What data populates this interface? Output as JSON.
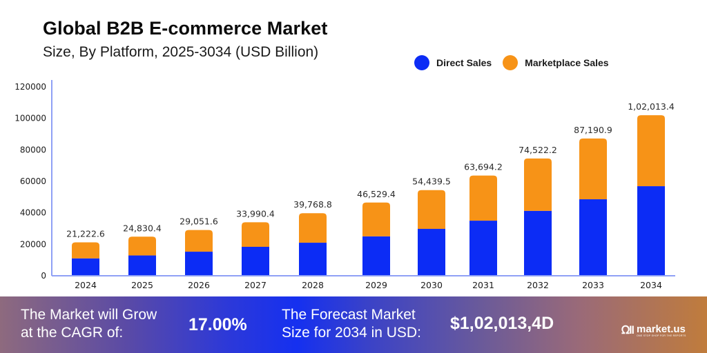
{
  "header": {
    "title": "Global B2B E-commerce Market",
    "subtitle": "Size, By Platform, 2025-3034 (USD Billion)"
  },
  "colors": {
    "direct_sales": "#0c2cf5",
    "marketplace_sales": "#f79317",
    "axis": "#8fa0f5"
  },
  "chart_data": {
    "type": "bar",
    "stacked": true,
    "title": "Global B2B E-commerce Market",
    "subtitle": "Size, By Platform, 2025-3034 (USD Billion)",
    "xlabel": "",
    "ylabel": "",
    "ylim": [
      0,
      120000
    ],
    "yticks": [
      0,
      20000,
      40000,
      60000,
      80000,
      100000,
      120000
    ],
    "ytick_labels": [
      "0",
      "20000",
      "40000",
      "60000",
      "80000",
      "100000",
      "120000"
    ],
    "grid": false,
    "legend_position": "top-right",
    "categories": [
      "2024",
      "2025",
      "2026",
      "2027",
      "2028",
      "2029",
      "2030",
      "2031",
      "2032",
      "2033",
      "2034"
    ],
    "series": [
      {
        "name": "Direct Sales",
        "color": "#0c2cf5",
        "values": [
          11000,
          12900,
          15300,
          18400,
          21000,
          25000,
          29800,
          35000,
          41200,
          48600,
          56900
        ]
      },
      {
        "name": "Marketplace Sales",
        "color": "#f79317",
        "values": [
          10222.6,
          11930.4,
          13751.6,
          15590.4,
          18768.8,
          21529.4,
          24639.5,
          28694.2,
          33322.2,
          38590.9,
          45113.4
        ]
      }
    ],
    "totals": [
      21222.6,
      24830.4,
      29051.6,
      33990.4,
      39768.8,
      46529.4,
      54439.5,
      63694.2,
      74522.2,
      87190.9,
      102013.4
    ],
    "total_labels": [
      "21,222.6",
      "24,830.4",
      "29,051.6",
      "33,990.4",
      "39,768.8",
      "46,529.4",
      "54,439.5",
      "63,694.2",
      "74,522.2",
      "87,190.9",
      "1,02,013.4"
    ]
  },
  "legend": [
    {
      "label": "Direct Sales",
      "color": "#0c2cf5"
    },
    {
      "label": "Marketplace Sales",
      "color": "#f79317"
    }
  ],
  "banner": {
    "cagr_text_line1": "The Market will Grow",
    "cagr_text_line2": "at the CAGR of:",
    "cagr_value": "17.00%",
    "forecast_text_line1": "The Forecast Market",
    "forecast_text_line2": "Size for 2034 in USD:",
    "forecast_value": "$1,02,013,4D",
    "logo_mark": "ᘯll",
    "logo_name": "market.us",
    "logo_tagline": "ONE STOP SHOP FOR THE REPORTS"
  }
}
